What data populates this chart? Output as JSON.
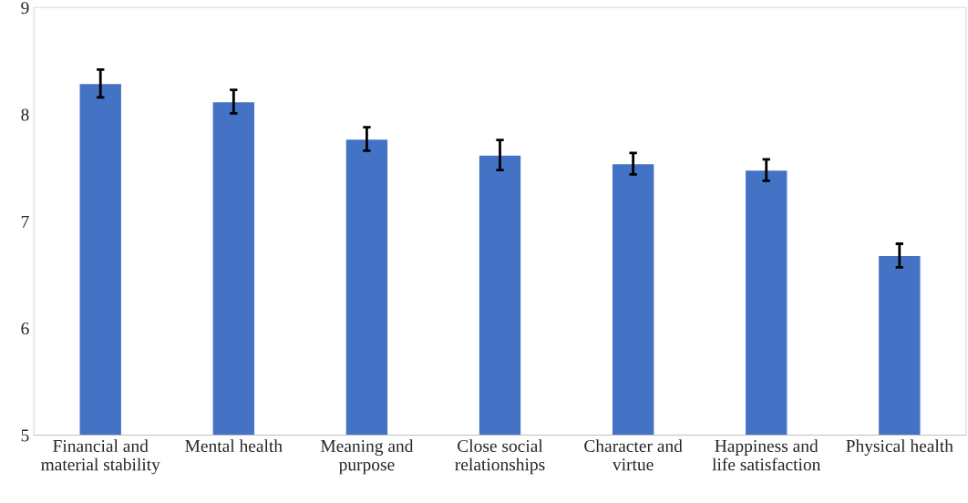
{
  "chart_data": {
    "type": "bar",
    "categories": [
      "Financial and\nmaterial stability",
      "Mental health",
      "Meaning and\npurpose",
      "Close social\nrelationships",
      "Character and\nvirtue",
      "Happiness and\nlife satisfaction",
      "Physical health"
    ],
    "values": [
      8.29,
      8.12,
      7.77,
      7.62,
      7.54,
      7.48,
      6.68
    ],
    "errors": [
      0.13,
      0.11,
      0.11,
      0.14,
      0.1,
      0.1,
      0.11
    ],
    "color": "#4472c4",
    "ylim": [
      5,
      9
    ],
    "yticks": [
      5,
      6,
      7,
      8,
      9
    ],
    "grid": false
  }
}
